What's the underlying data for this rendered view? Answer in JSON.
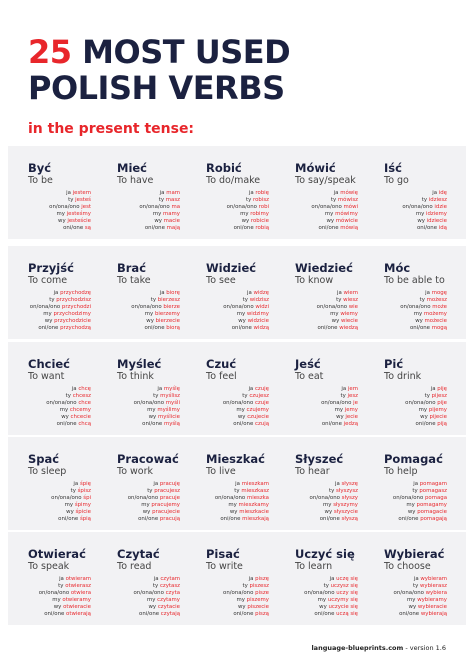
{
  "header": {
    "title_number": "25",
    "title_line1": "MOST USED",
    "title_line2": "POLISH VERBS",
    "subtitle": "in the present tense:"
  },
  "pronouns": [
    "ja",
    "ty",
    "on/ona/ono",
    "my",
    "wy",
    "oni/one"
  ],
  "verbs": [
    {
      "verb": "Być",
      "translation": "To be",
      "forms": [
        "jestem",
        "jesteś",
        "jest",
        "jesteśmy",
        "jesteście",
        "są"
      ]
    },
    {
      "verb": "Mieć",
      "translation": "To have",
      "forms": [
        "mam",
        "masz",
        "ma",
        "mamy",
        "macie",
        "mają"
      ]
    },
    {
      "verb": "Robić",
      "translation": "To do/make",
      "forms": [
        "robię",
        "robisz",
        "robi",
        "robimy",
        "robicie",
        "robią"
      ]
    },
    {
      "verb": "Mówić",
      "translation": "To say/speak",
      "forms": [
        "mówię",
        "mówisz",
        "mówi",
        "mówimy",
        "mówicie",
        "mówią"
      ]
    },
    {
      "verb": "Iść",
      "translation": "To go",
      "forms": [
        "idę",
        "idziesz",
        "idzie",
        "idziemy",
        "idziecie",
        "idą"
      ]
    },
    {
      "verb": "Przyjść",
      "translation": "To come",
      "forms": [
        "przychodzę",
        "przychodzisz",
        "przychodzi",
        "przychodzimy",
        "przychodzicie",
        "przychodzą"
      ]
    },
    {
      "verb": "Brać",
      "translation": "To take",
      "forms": [
        "biorę",
        "bierzesz",
        "bierze",
        "bierzemy",
        "bierzecie",
        "biorą"
      ]
    },
    {
      "verb": "Widzieć",
      "translation": "To see",
      "forms": [
        "widzę",
        "widzisz",
        "widzi",
        "widzimy",
        "widzicie",
        "widzą"
      ]
    },
    {
      "verb": "Wiedzieć",
      "translation": "To know",
      "forms": [
        "wiem",
        "wiesz",
        "wie",
        "wiemy",
        "wiecie",
        "wiedzą"
      ]
    },
    {
      "verb": "Móc",
      "translation": "To be able to",
      "forms": [
        "mogę",
        "możesz",
        "może",
        "możemy",
        "możecie",
        "mogą"
      ]
    },
    {
      "verb": "Chcieć",
      "translation": "To want",
      "forms": [
        "chcę",
        "chcesz",
        "chce",
        "chcemy",
        "chcecie",
        "chcą"
      ]
    },
    {
      "verb": "Myśleć",
      "translation": "To think",
      "forms": [
        "myślę",
        "myślisz",
        "myśli",
        "myślimy",
        "myślicie",
        "myślą"
      ]
    },
    {
      "verb": "Czuć",
      "translation": "To feel",
      "forms": [
        "czuję",
        "czujesz",
        "czuje",
        "czujemy",
        "czujecie",
        "czują"
      ]
    },
    {
      "verb": "Jeść",
      "translation": "To eat",
      "forms": [
        "jem",
        "jesz",
        "je",
        "jemy",
        "jecie",
        "jedzą"
      ]
    },
    {
      "verb": "Pić",
      "translation": "To drink",
      "forms": [
        "piję",
        "pijesz",
        "pije",
        "pijemy",
        "pijecie",
        "piją"
      ]
    },
    {
      "verb": "Spać",
      "translation": "To sleep",
      "forms": [
        "śpię",
        "śpisz",
        "śpi",
        "śpimy",
        "śpicie",
        "śpią"
      ]
    },
    {
      "verb": "Pracować",
      "translation": "To work",
      "forms": [
        "pracuję",
        "pracujesz",
        "pracuje",
        "pracujemy",
        "pracujecie",
        "pracują"
      ]
    },
    {
      "verb": "Mieszkać",
      "translation": "To live",
      "forms": [
        "mieszkam",
        "mieszkasz",
        "mieszka",
        "mieszkamy",
        "mieszkacie",
        "mieszkają"
      ]
    },
    {
      "verb": "Słyszeć",
      "translation": "To hear",
      "forms": [
        "słyszę",
        "słyszysz",
        "słyszy",
        "słyszymy",
        "słyszycie",
        "słyszą"
      ]
    },
    {
      "verb": "Pomagać",
      "translation": "To help",
      "forms": [
        "pomagam",
        "pomagasz",
        "pomaga",
        "pomagamy",
        "pomagacie",
        "pomagają"
      ]
    },
    {
      "verb": "Otwierać",
      "translation": "To speak",
      "forms": [
        "otwieram",
        "otwierasz",
        "otwiera",
        "otwieramy",
        "otwieracie",
        "otwierają"
      ]
    },
    {
      "verb": "Czytać",
      "translation": "To read",
      "forms": [
        "czytam",
        "czytasz",
        "czyta",
        "czytamy",
        "czytacie",
        "czytają"
      ]
    },
    {
      "verb": "Pisać",
      "translation": "To write",
      "forms": [
        "piszę",
        "piszesz",
        "pisze",
        "piszemy",
        "piszecie",
        "piszą"
      ]
    },
    {
      "verb": "Uczyć się",
      "translation": "To learn",
      "forms": [
        "uczę się",
        "uczysz się",
        "uczy się",
        "uczymy się",
        "uczycie się",
        "uczą się"
      ]
    },
    {
      "verb": "Wybierać",
      "translation": "To choose",
      "forms": [
        "wybieram",
        "wybierasz",
        "wybiera",
        "wybieramy",
        "wybieracie",
        "wybierają"
      ]
    }
  ],
  "footer": {
    "site": "language-blueprints.com",
    "version": "- version 1.6"
  }
}
